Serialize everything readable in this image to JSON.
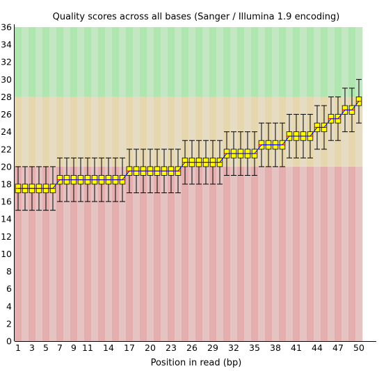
{
  "chart_data": {
    "type": "box",
    "title": "Quality scores across all bases (Sanger / Illumina 1.9 encoding)",
    "xlabel": "Position in read (bp)",
    "ylabel": "",
    "ylim": [
      0,
      36
    ],
    "yticks": [
      0,
      2,
      4,
      6,
      8,
      10,
      12,
      14,
      16,
      18,
      20,
      22,
      24,
      26,
      28,
      30,
      32,
      34,
      36
    ],
    "xtick_labels": [
      "1",
      "3",
      "5",
      "7",
      "9",
      "11",
      "14",
      "17",
      "20",
      "23",
      "26",
      "29",
      "32",
      "35",
      "38",
      "41",
      "44",
      "47",
      "50"
    ],
    "quality_bands": [
      {
        "from": 0,
        "to": 20,
        "colors": [
          "#e6afaf",
          "#e6c3c3"
        ]
      },
      {
        "from": 20,
        "to": 28,
        "colors": [
          "#e6d7af",
          "#e6dcc3"
        ]
      },
      {
        "from": 28,
        "to": 36,
        "colors": [
          "#afe6af",
          "#c3e6c3"
        ]
      }
    ],
    "colors": {
      "box": "#ffff00",
      "median": "#ff0000",
      "mean": "#0000ff",
      "whisker": "#000000"
    },
    "positions": [
      1,
      2,
      3,
      4,
      5,
      6,
      7,
      8,
      9,
      10,
      11,
      12,
      13,
      14,
      15,
      16,
      17,
      18,
      19,
      20,
      21,
      22,
      23,
      24,
      25,
      26,
      27,
      28,
      29,
      30,
      31,
      32,
      33,
      34,
      35,
      36,
      37,
      38,
      39,
      40,
      41,
      42,
      43,
      44,
      45,
      46,
      47,
      48,
      49,
      50
    ],
    "median": [
      17.5,
      17.5,
      17.5,
      17.5,
      17.5,
      17.5,
      18.5,
      18.5,
      18.5,
      18.5,
      18.5,
      18.5,
      18.5,
      18.5,
      18.5,
      18.5,
      19.5,
      19.5,
      19.5,
      19.5,
      19.5,
      19.5,
      19.5,
      19.5,
      20.5,
      20.5,
      20.5,
      20.5,
      20.5,
      20.5,
      21.5,
      21.5,
      21.5,
      21.5,
      21.5,
      22.5,
      22.5,
      22.5,
      22.5,
      23.5,
      23.5,
      23.5,
      23.5,
      24.5,
      24.5,
      25.5,
      25.5,
      26.5,
      26.5,
      27.5
    ],
    "mean": [
      17.5,
      17.5,
      17.5,
      17.5,
      17.5,
      17.5,
      18.5,
      18.5,
      18.5,
      18.5,
      18.5,
      18.5,
      18.5,
      18.5,
      18.5,
      18.5,
      19.5,
      19.5,
      19.5,
      19.5,
      19.5,
      19.5,
      19.5,
      19.5,
      20.5,
      20.5,
      20.5,
      20.5,
      20.5,
      20.5,
      21.5,
      21.5,
      21.5,
      21.5,
      21.5,
      22.5,
      22.5,
      22.5,
      22.5,
      23.5,
      23.5,
      23.5,
      23.5,
      24.5,
      24.5,
      25.5,
      25.5,
      26.5,
      26.5,
      27.5
    ],
    "q1": [
      17,
      17,
      17,
      17,
      17,
      17,
      18,
      18,
      18,
      18,
      18,
      18,
      18,
      18,
      18,
      18,
      19,
      19,
      19,
      19,
      19,
      19,
      19,
      19,
      20,
      20,
      20,
      20,
      20,
      20,
      21,
      21,
      21,
      21,
      21,
      22,
      22,
      22,
      22,
      23,
      23,
      23,
      23,
      24,
      24,
      25,
      25,
      26,
      26,
      27
    ],
    "q3": [
      18,
      18,
      18,
      18,
      18,
      18,
      19,
      19,
      19,
      19,
      19,
      19,
      19,
      19,
      19,
      19,
      20,
      20,
      20,
      20,
      20,
      20,
      20,
      20,
      21,
      21,
      21,
      21,
      21,
      21,
      22,
      22,
      22,
      22,
      22,
      23,
      23,
      23,
      23,
      24,
      24,
      24,
      24,
      25,
      25,
      26,
      26,
      27,
      27,
      28
    ],
    "whisker_low": [
      15,
      15,
      15,
      15,
      15,
      15,
      16,
      16,
      16,
      16,
      16,
      16,
      16,
      16,
      16,
      16,
      17,
      17,
      17,
      17,
      17,
      17,
      17,
      17,
      18,
      18,
      18,
      18,
      18,
      18,
      19,
      19,
      19,
      19,
      19,
      20,
      20,
      20,
      20,
      21,
      21,
      21,
      21,
      22,
      22,
      23,
      23,
      24,
      24,
      25
    ],
    "whisker_high": [
      20,
      20,
      20,
      20,
      20,
      20,
      21,
      21,
      21,
      21,
      21,
      21,
      21,
      21,
      21,
      21,
      22,
      22,
      22,
      22,
      22,
      22,
      22,
      22,
      23,
      23,
      23,
      23,
      23,
      23,
      24,
      24,
      24,
      24,
      24,
      25,
      25,
      25,
      25,
      26,
      26,
      26,
      26,
      27,
      27,
      28,
      28,
      29,
      29,
      30
    ]
  }
}
